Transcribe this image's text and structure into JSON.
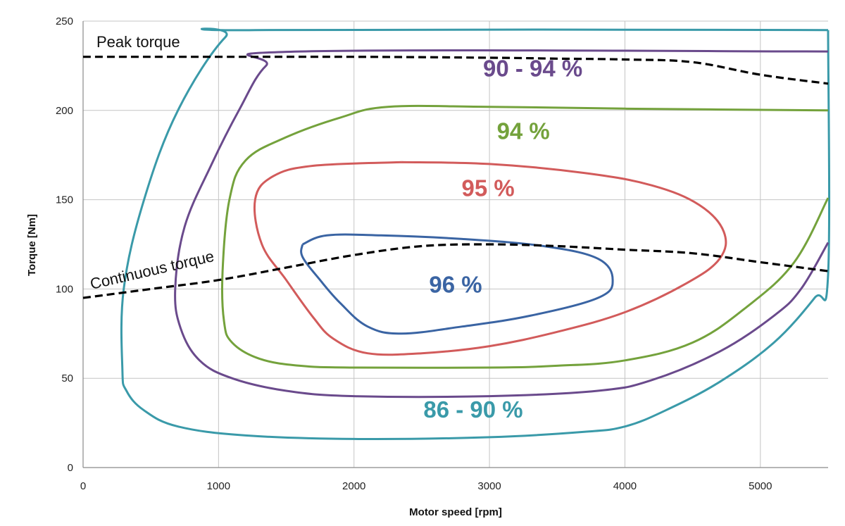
{
  "chart_data": {
    "type": "line",
    "xlabel": "Motor speed [rpm]",
    "ylabel": "Torque [Nm]",
    "xlim": [
      0,
      5500
    ],
    "ylim": [
      0,
      250
    ],
    "x_ticks": [
      0,
      1000,
      2000,
      3000,
      4000,
      5000
    ],
    "y_ticks": [
      0,
      50,
      100,
      150,
      200,
      250
    ],
    "grid": true,
    "legend": "none",
    "torque_lines": [
      {
        "name": "Peak torque",
        "style": "dashed",
        "color": "#000000",
        "points": [
          [
            0,
            230
          ],
          [
            1000,
            230
          ],
          [
            2000,
            230
          ],
          [
            3000,
            229.5
          ],
          [
            3500,
            229
          ],
          [
            4000,
            228.5
          ],
          [
            4500,
            227
          ],
          [
            5000,
            220
          ],
          [
            5500,
            215
          ]
        ]
      },
      {
        "name": "Continuous torque",
        "style": "dashed",
        "color": "#000000",
        "points": [
          [
            0,
            95
          ],
          [
            500,
            100
          ],
          [
            1000,
            105
          ],
          [
            1500,
            112
          ],
          [
            2000,
            119
          ],
          [
            2500,
            124
          ],
          [
            3000,
            125
          ],
          [
            3500,
            124
          ],
          [
            4000,
            122
          ],
          [
            4500,
            120
          ],
          [
            5000,
            115
          ],
          [
            5500,
            110
          ]
        ]
      }
    ],
    "efficiency_contours": [
      {
        "name": "86 - 90 %",
        "color": "#3a9aa9",
        "label_at": [
          2880,
          28
        ],
        "points": [
          [
            5500,
            245
          ],
          [
            1270,
            245
          ],
          [
            1050,
            241
          ],
          [
            700,
            200
          ],
          [
            450,
            150
          ],
          [
            300,
            100
          ],
          [
            290,
            55
          ],
          [
            320,
            43
          ],
          [
            450,
            32
          ],
          [
            700,
            23
          ],
          [
            1200,
            18
          ],
          [
            2000,
            16
          ],
          [
            3000,
            17
          ],
          [
            3700,
            20
          ],
          [
            4000,
            23
          ],
          [
            4300,
            32
          ],
          [
            4700,
            48
          ],
          [
            5100,
            70
          ],
          [
            5400,
            95
          ],
          [
            5500,
            108
          ],
          [
            5500,
            245
          ]
        ]
      },
      {
        "name": "90 - 94 %",
        "color": "#6a4a8c",
        "label_at": [
          3320,
          219
        ],
        "points": [
          [
            5500,
            233
          ],
          [
            1600,
            233
          ],
          [
            1350,
            225
          ],
          [
            1150,
            200
          ],
          [
            950,
            170
          ],
          [
            750,
            135
          ],
          [
            680,
            100
          ],
          [
            720,
            78
          ],
          [
            860,
            60
          ],
          [
            1100,
            50
          ],
          [
            1500,
            43
          ],
          [
            2000,
            40
          ],
          [
            3000,
            40
          ],
          [
            3800,
            43
          ],
          [
            4200,
            49
          ],
          [
            4700,
            65
          ],
          [
            5100,
            85
          ],
          [
            5300,
            100
          ],
          [
            5500,
            126
          ]
        ]
      },
      {
        "name": "94 %",
        "color": "#74a23c",
        "label_at": [
          3250,
          184
        ],
        "points": [
          [
            5500,
            200
          ],
          [
            4000,
            201
          ],
          [
            3000,
            202
          ],
          [
            2250,
            202
          ],
          [
            1900,
            196
          ],
          [
            1500,
            185
          ],
          [
            1200,
            172
          ],
          [
            1080,
            150
          ],
          [
            1030,
            110
          ],
          [
            1040,
            82
          ],
          [
            1100,
            70
          ],
          [
            1300,
            61
          ],
          [
            1600,
            57
          ],
          [
            2000,
            56
          ],
          [
            3000,
            56
          ],
          [
            3500,
            57
          ],
          [
            4000,
            60
          ],
          [
            4500,
            70
          ],
          [
            4900,
            90
          ],
          [
            5250,
            115
          ],
          [
            5500,
            151
          ]
        ]
      },
      {
        "name": "95 %",
        "color": "#d25b5b",
        "label_at": [
          2990,
          152
        ],
        "points": [
          [
            2350,
            171
          ],
          [
            1700,
            169
          ],
          [
            1400,
            163
          ],
          [
            1270,
            150
          ],
          [
            1320,
            125
          ],
          [
            1500,
            105
          ],
          [
            1700,
            84
          ],
          [
            1850,
            72
          ],
          [
            2100,
            64
          ],
          [
            2500,
            64
          ],
          [
            3000,
            68
          ],
          [
            3500,
            76
          ],
          [
            4000,
            87
          ],
          [
            4450,
            103
          ],
          [
            4700,
            117
          ],
          [
            4730,
            132
          ],
          [
            4550,
            147
          ],
          [
            4200,
            158
          ],
          [
            3700,
            165
          ],
          [
            3000,
            170
          ],
          [
            2350,
            171
          ]
        ]
      },
      {
        "name": "96 %",
        "color": "#3a64a3",
        "label_at": [
          2750,
          98
        ],
        "points": [
          [
            1620,
            125
          ],
          [
            1800,
            130
          ],
          [
            2200,
            130
          ],
          [
            2800,
            128
          ],
          [
            3400,
            124
          ],
          [
            3800,
            117
          ],
          [
            3910,
            105
          ],
          [
            3800,
            95
          ],
          [
            3300,
            85
          ],
          [
            2800,
            79
          ],
          [
            2350,
            75
          ],
          [
            2100,
            79
          ],
          [
            1900,
            92
          ],
          [
            1750,
            105
          ],
          [
            1620,
            118
          ],
          [
            1620,
            125
          ]
        ]
      }
    ]
  }
}
